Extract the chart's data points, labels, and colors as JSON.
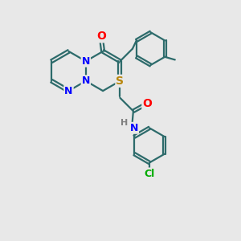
{
  "background_color": "#e8e8e8",
  "bond_color": "#2d6b6b",
  "atom_colors": {
    "O": "#ff0000",
    "N": "#0000ff",
    "S": "#b8860b",
    "Cl": "#00aa00",
    "H": "#808080",
    "C": "#2d6b6b"
  },
  "figsize": [
    3.0,
    3.0
  ],
  "dpi": 100
}
